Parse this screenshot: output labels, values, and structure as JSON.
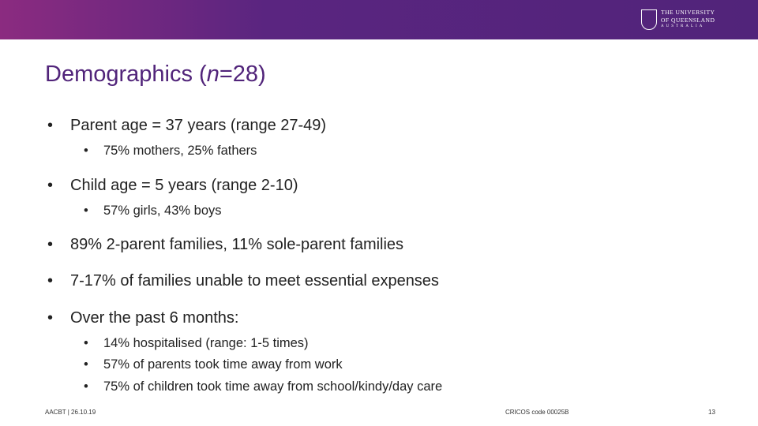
{
  "header": {
    "logo": {
      "lines": [
        "The University",
        "of Queensland",
        "Australia"
      ]
    }
  },
  "title": {
    "parts": [
      "Demographics (",
      "n",
      "=28)"
    ]
  },
  "bullets": [
    {
      "text": "Parent age = 37 years (range 27-49)",
      "sub": [
        "75% mothers, 25% fathers"
      ]
    },
    {
      "text": "Child age = 5 years (range 2-10)",
      "sub": [
        "57% girls, 43% boys"
      ]
    },
    {
      "text": "89% 2-parent families, 11% sole-parent families",
      "sub": []
    },
    {
      "text": "7-17% of families unable to meet essential expenses",
      "sub": []
    },
    {
      "text": "Over the past 6 months:",
      "sub": [
        "14% hospitalised (range: 1-5 times)",
        "57% of parents took time away from work",
        "75% of children took time away from school/kindy/day care"
      ]
    }
  ],
  "footer": {
    "left": "AACBT | 26.10.19",
    "center": "CRICOS code 00025B",
    "page": "13"
  }
}
